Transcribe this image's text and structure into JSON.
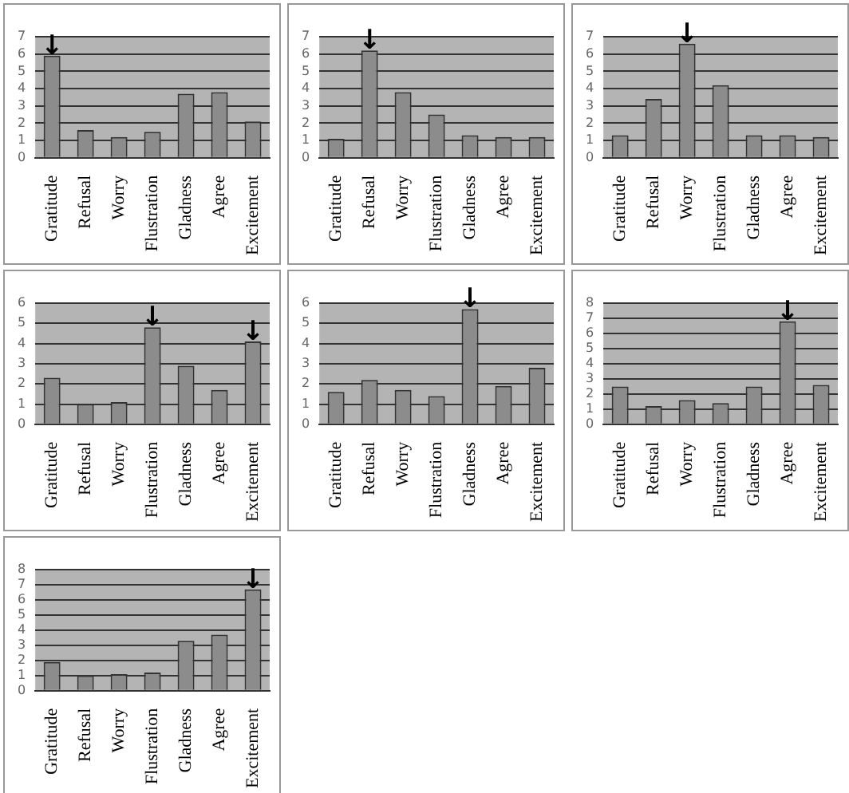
{
  "chart_data": [
    {
      "type": "bar",
      "categories": [
        "Gratitude",
        "Refusal",
        "Worry",
        "Flustration",
        "Gladness",
        "Agree",
        "Excitement"
      ],
      "values": [
        5.9,
        1.6,
        1.2,
        1.5,
        3.7,
        3.8,
        2.1
      ],
      "color": "#8c8c8c",
      "ylim": [
        0,
        7
      ],
      "yticks": [
        0,
        1,
        2,
        3,
        4,
        5,
        6,
        7
      ],
      "grid": "y",
      "annotations": [
        {
          "text": "↓",
          "x": "Gratitude",
          "y": 5.9
        }
      ]
    },
    {
      "type": "bar",
      "categories": [
        "Gratitude",
        "Refusal",
        "Worry",
        "Flustration",
        "Gladness",
        "Agree",
        "Excitement"
      ],
      "values": [
        1.1,
        6.2,
        3.8,
        2.5,
        1.3,
        1.2,
        1.2
      ],
      "color": "#8c8c8c",
      "ylim": [
        0,
        7
      ],
      "yticks": [
        0,
        1,
        2,
        3,
        4,
        5,
        6,
        7
      ],
      "grid": "y",
      "annotations": [
        {
          "text": "↓",
          "x": "Refusal",
          "y": 6.2
        }
      ]
    },
    {
      "type": "bar",
      "categories": [
        "Gratitude",
        "Refusal",
        "Worry",
        "Flustration",
        "Gladness",
        "Agree",
        "Excitement"
      ],
      "values": [
        1.3,
        3.4,
        6.6,
        4.2,
        1.3,
        1.3,
        1.2
      ],
      "color": "#8c8c8c",
      "ylim": [
        0,
        7
      ],
      "yticks": [
        0,
        1,
        2,
        3,
        4,
        5,
        6,
        7
      ],
      "grid": "y",
      "annotations": [
        {
          "text": "↓",
          "x": "Worry",
          "y": 6.6
        }
      ]
    },
    {
      "type": "bar",
      "categories": [
        "Gratitude",
        "Refusal",
        "Worry",
        "Flustration",
        "Gladness",
        "Agree",
        "Excitement"
      ],
      "values": [
        2.3,
        1.0,
        1.1,
        4.8,
        2.9,
        1.7,
        4.1
      ],
      "color": "#8c8c8c",
      "ylim": [
        0,
        6
      ],
      "yticks": [
        0,
        1,
        2,
        3,
        4,
        5,
        6
      ],
      "grid": "y",
      "annotations": [
        {
          "text": "↓",
          "x": "Flustration",
          "y": 4.8
        },
        {
          "text": "↓",
          "x": "Excitement",
          "y": 4.1
        }
      ]
    },
    {
      "type": "bar",
      "categories": [
        "Gratitude",
        "Refusal",
        "Worry",
        "Flustration",
        "Gladness",
        "Agree",
        "Excitement"
      ],
      "values": [
        1.6,
        2.2,
        1.7,
        1.4,
        5.7,
        1.9,
        2.8
      ],
      "color": "#8c8c8c",
      "ylim": [
        0,
        6
      ],
      "yticks": [
        0,
        1,
        2,
        3,
        4,
        5,
        6
      ],
      "grid": "y",
      "annotations": [
        {
          "text": "↓",
          "x": "Gladness",
          "y": 5.7
        }
      ]
    },
    {
      "type": "bar",
      "categories": [
        "Gratitude",
        "Refusal",
        "Worry",
        "Flustration",
        "Gladness",
        "Agree",
        "Excitement"
      ],
      "values": [
        2.5,
        1.2,
        1.6,
        1.4,
        2.5,
        6.8,
        2.6
      ],
      "color": "#8c8c8c",
      "ylim": [
        0,
        8
      ],
      "yticks": [
        0,
        1,
        2,
        3,
        4,
        5,
        6,
        7,
        8
      ],
      "grid": "y",
      "annotations": [
        {
          "text": "↓",
          "x": "Agree",
          "y": 6.8
        }
      ]
    },
    {
      "type": "bar",
      "categories": [
        "Gratitude",
        "Refusal",
        "Worry",
        "Flustration",
        "Gladness",
        "Agree",
        "Excitement"
      ],
      "values": [
        1.9,
        1.0,
        1.1,
        1.2,
        3.3,
        3.7,
        6.7
      ],
      "color": "#8c8c8c",
      "ylim": [
        0,
        8
      ],
      "yticks": [
        0,
        1,
        2,
        3,
        4,
        5,
        6,
        7,
        8
      ],
      "grid": "y",
      "annotations": [
        {
          "text": "↓",
          "x": "Excitement",
          "y": 6.7
        }
      ]
    }
  ]
}
